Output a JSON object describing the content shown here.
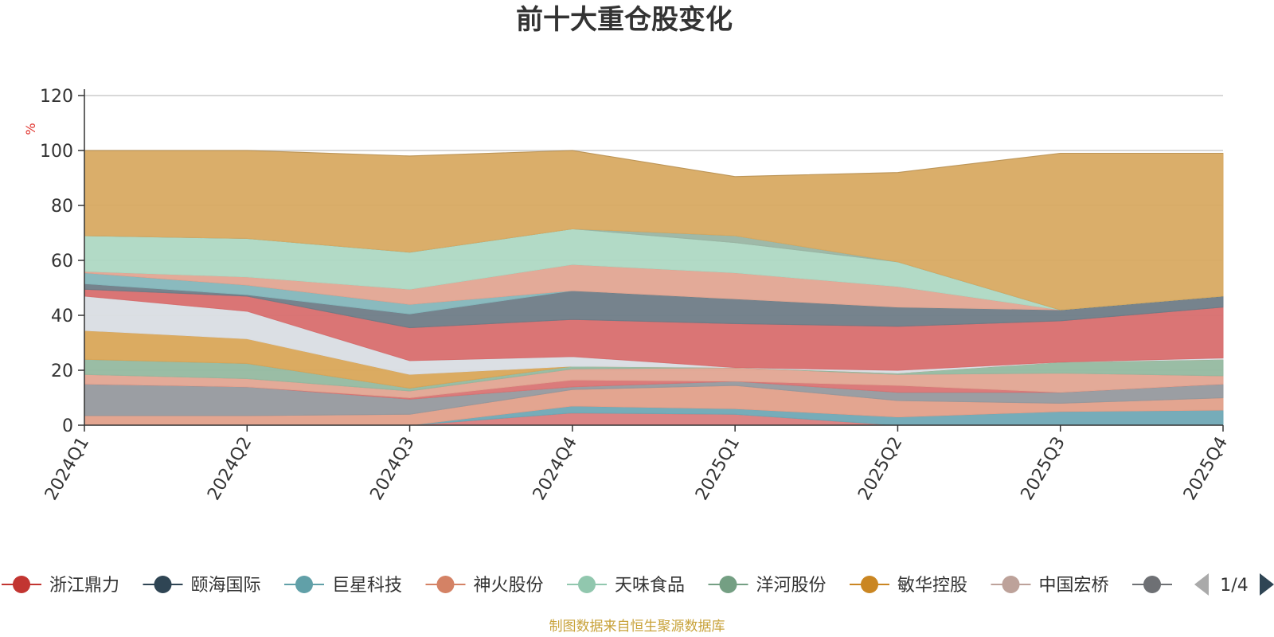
{
  "chart_data": {
    "type": "area",
    "title": "前十大重仓股变化",
    "ylabel": "%",
    "ylim": [
      0,
      120
    ],
    "yticks": [
      0,
      20,
      40,
      60,
      80,
      100,
      120
    ],
    "categories": [
      "2024Q1",
      "2024Q2",
      "2024Q3",
      "2024Q4",
      "2025Q1",
      "2025Q2",
      "2025Q3",
      "2025Q4"
    ],
    "layers": [
      {
        "color": "#d97d7d",
        "top": [
          0,
          0,
          0,
          4.5,
          4,
          0,
          0,
          0
        ]
      },
      {
        "color": "#6fa8b5",
        "top": [
          0,
          0,
          0,
          7,
          6,
          3,
          5,
          5.5
        ]
      },
      {
        "color": "#e2a08a",
        "top": [
          3.5,
          3.5,
          4,
          13,
          14.5,
          9,
          8,
          10
        ]
      },
      {
        "color": "#96999e",
        "top": [
          15,
          14,
          9.5,
          14,
          16,
          12,
          12,
          15
        ]
      },
      {
        "color": "#d97474",
        "top": [
          15,
          14,
          10,
          16.5,
          16,
          14.5,
          12,
          15
        ]
      },
      {
        "color": "#e2a592",
        "top": [
          18.5,
          17,
          12.5,
          20.5,
          21,
          18.5,
          19,
          18
        ]
      },
      {
        "color": "#95b9a0",
        "top": [
          24,
          22.5,
          13.5,
          21.5,
          21,
          19,
          23,
          24
        ]
      },
      {
        "color": "#d9a659",
        "top": [
          34.5,
          31.5,
          18.5,
          21.5,
          21,
          19,
          23,
          24
        ]
      },
      {
        "color": "#d9dde3",
        "top": [
          47,
          41.5,
          23.5,
          25,
          21,
          20,
          23,
          24.5
        ]
      },
      {
        "color": "#d86e6e",
        "top": [
          49.5,
          47,
          35.5,
          38.5,
          37,
          36,
          38,
          43
        ]
      },
      {
        "color": "#6f7c87",
        "top": [
          51.5,
          47.5,
          40.5,
          49,
          46,
          43,
          42,
          47
        ]
      },
      {
        "color": "#84b6bb",
        "top": [
          55.5,
          51,
          44,
          49,
          46,
          43,
          42,
          47
        ]
      },
      {
        "color": "#e1a592",
        "top": [
          56,
          54,
          49.5,
          58.5,
          55.5,
          50.5,
          42,
          47
        ]
      },
      {
        "color": "#aed8c3",
        "top": [
          69,
          68,
          63,
          71.5,
          66.5,
          59.5,
          42,
          47
        ]
      },
      {
        "color": "#9ab5a3",
        "top": [
          69,
          68,
          63,
          71.5,
          69,
          59.5,
          42,
          47
        ]
      },
      {
        "color": "#d8aa62",
        "top": [
          100,
          100,
          98,
          100,
          90.5,
          92,
          99,
          99
        ]
      }
    ],
    "overlay_bands": [
      {
        "color": "#b9bfc4",
        "bottom": [
          0,
          0,
          0,
          0,
          0,
          0,
          0,
          0
        ],
        "top": [
          0,
          0,
          0,
          0,
          0,
          0,
          0,
          0
        ]
      }
    ],
    "legend": {
      "placement": "bottom",
      "page": "1/4",
      "items": [
        {
          "name": "浙江鼎力",
          "color": "#c23531"
        },
        {
          "name": "颐海国际",
          "color": "#2f4554"
        },
        {
          "name": "巨星科技",
          "color": "#61a0a8"
        },
        {
          "name": "神火股份",
          "color": "#d48265"
        },
        {
          "name": "天味食品",
          "color": "#91c7ae"
        },
        {
          "name": "洋河股份",
          "color": "#749f83"
        },
        {
          "name": "敏华控股",
          "color": "#ca8622"
        },
        {
          "name": "中国宏桥",
          "color": "#bda29a"
        },
        {
          "name": "",
          "color": "#6e7074"
        }
      ]
    },
    "source": "制图数据来自恒生聚源数据库"
  }
}
